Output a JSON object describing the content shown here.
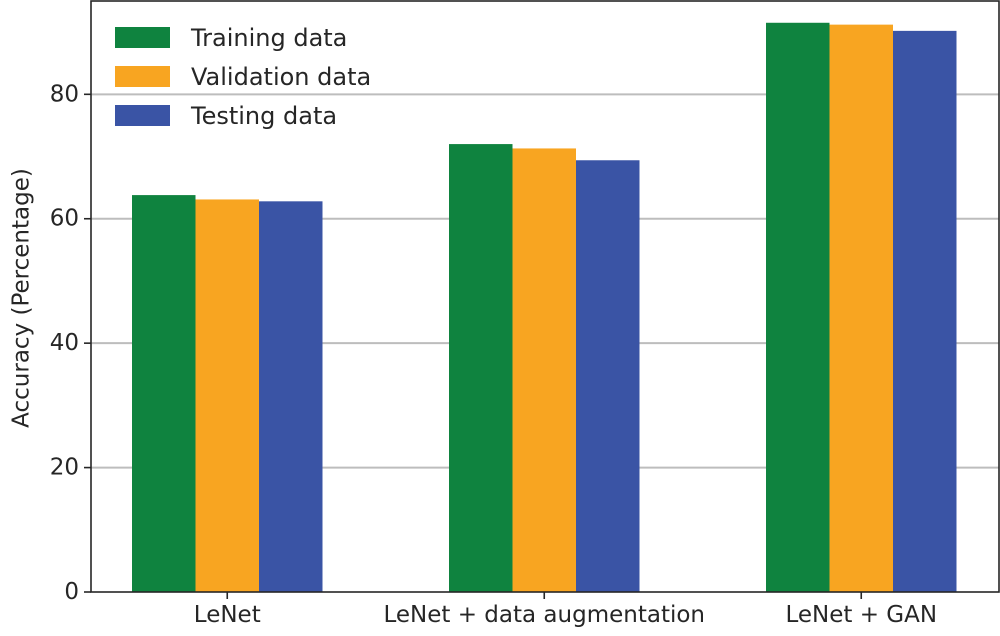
{
  "chart_data": {
    "type": "bar",
    "title": "",
    "xlabel": "",
    "ylabel": "Accuracy (Percentage)",
    "ylim": [
      0,
      95
    ],
    "yticks": [
      0,
      20,
      40,
      60,
      80
    ],
    "grid": true,
    "legend_position": "top-left",
    "categories": [
      "LeNet",
      "LeNet + data augmentation",
      "LeNet + GAN"
    ],
    "series": [
      {
        "name": "Training data",
        "color": "#0f833f",
        "values": [
          63.8,
          72.0,
          91.5
        ]
      },
      {
        "name": "Validation data",
        "color": "#f8a521",
        "values": [
          63.1,
          71.3,
          91.2
        ]
      },
      {
        "name": "Testing data",
        "color": "#3a54a5",
        "values": [
          62.8,
          69.4,
          90.2
        ]
      }
    ]
  }
}
